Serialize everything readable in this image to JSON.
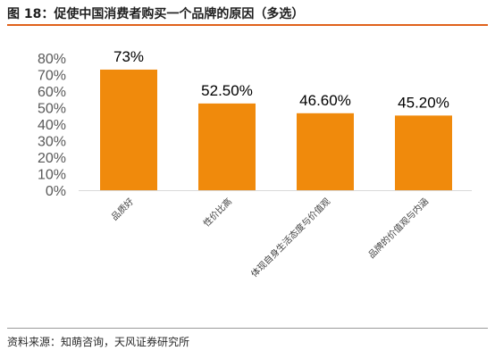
{
  "header": {
    "title": "图 18：促使中国消费者购买一个品牌的原因（多选）"
  },
  "footer": {
    "source": "资料来源：知萌咨询，天风证券研究所"
  },
  "chart_data": {
    "type": "bar",
    "categories": [
      "品质好",
      "性价比高",
      "体现自身生活态度与价值观",
      "品牌的价值观与内涵"
    ],
    "values": [
      73,
      52.5,
      46.6,
      45.2
    ],
    "data_labels": [
      "73%",
      "52.50%",
      "46.60%",
      "45.20%"
    ],
    "ylim": [
      0,
      80
    ],
    "yticks": [
      "0%",
      "10%",
      "20%",
      "30%",
      "40%",
      "50%",
      "60%",
      "70%",
      "80%"
    ],
    "grid": false,
    "bar_color": "#f08a0c"
  }
}
